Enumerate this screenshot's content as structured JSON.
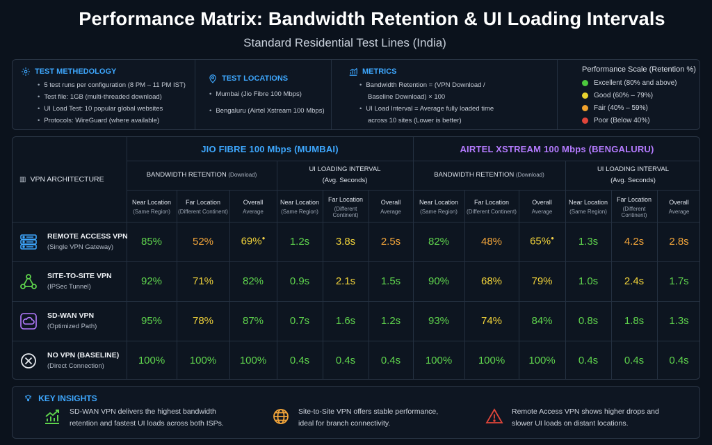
{
  "title": "Performance Matrix: Bandwidth Retention & UI Loading Intervals",
  "subtitle": "Standard Residential Test Lines (India)",
  "info": {
    "methodology": {
      "heading": "TEST METHEDOLOGY",
      "icon": "gear-icon",
      "items": [
        "5 test runs per configuration (8 PM – 11 PM IST)",
        "Test file: 1GB (multi-threaded download)",
        "UI Load Test: 10 popular global websites",
        "Protocols: WireGuard (where available)"
      ]
    },
    "locations": {
      "heading": "TEST LOCATIONS",
      "icon": "map-pin-icon",
      "items": [
        "Mumbai (Jio Fibre 100 Mbps)",
        "Bengaluru (Airtel Xstream 100 Mbps)"
      ]
    },
    "metrics": {
      "heading": "METRICS",
      "icon": "bar-chart-icon",
      "items": [
        "Bandwidth Retention = (VPN Download /",
        "Baseline Download) × 100",
        "UI Load Interval = Average fully loaded time",
        "across 10 sites (Lower is better)"
      ]
    },
    "scale": {
      "title": "Performance Scale (Retention %)",
      "items": [
        {
          "label": "Excellent (80% and above)",
          "color": "#4cc93d"
        },
        {
          "label": "Good (60% – 79%)",
          "color": "#e8d22e"
        },
        {
          "label": "Fair (40% – 59%)",
          "color": "#f0a12c"
        },
        {
          "label": "Poor (Below 40%)",
          "color": "#e0453a"
        }
      ]
    }
  },
  "matrix": {
    "arch_header": "VPN ARCHITECTURE",
    "isps": [
      {
        "name": "JIO FIBRE 100 Mbps (MUMBAI)",
        "color": "#3ea8ff"
      },
      {
        "name": "AIRTEL XSTREAM 100 Mbps (BENGALURU)",
        "color": "#b57bff"
      }
    ],
    "groups": {
      "bw_title": "BANDWIDTH RETENTION",
      "bw_note": "(Download)",
      "ui_title": "UI LOADING INTERVAL",
      "ui_note": "(Avg. Seconds)"
    },
    "subheaders": [
      {
        "l1": "Near Location",
        "l2": "(Same Region)"
      },
      {
        "l1": "Far Location",
        "l2": "(Different Continent)"
      },
      {
        "l1": "Overall",
        "l2": "Average"
      }
    ],
    "rows": [
      {
        "name": "REMOTE ACCESS VPN",
        "sub": "(Single VPN Gateway)",
        "icon": "server-icon",
        "values": [
          "85%",
          "52%",
          "69%",
          "1.2s",
          "3.8s",
          "2.5s",
          "82%",
          "48%",
          "65%",
          "1.3s",
          "4.2s",
          "2.8s"
        ],
        "colors": [
          "green",
          "orange",
          "yellow",
          "green",
          "yellow",
          "orange",
          "green",
          "orange",
          "yellow",
          "green",
          "orange",
          "orange"
        ],
        "stars": [
          2,
          8
        ]
      },
      {
        "name": "SITE-TO-SITE VPN",
        "sub": "(IPSec Tunnel)",
        "icon": "network-nodes-icon",
        "values": [
          "92%",
          "71%",
          "82%",
          "0.9s",
          "2.1s",
          "1.5s",
          "90%",
          "68%",
          "79%",
          "1.0s",
          "2.4s",
          "1.7s"
        ],
        "colors": [
          "green",
          "yellow",
          "green",
          "green",
          "yellow",
          "green",
          "green",
          "yellow",
          "yellow",
          "green",
          "yellow",
          "green"
        ],
        "stars": []
      },
      {
        "name": "SD-WAN VPN",
        "sub": "(Optimized Path)",
        "icon": "cloud-shield-icon",
        "values": [
          "95%",
          "78%",
          "87%",
          "0.7s",
          "1.6s",
          "1.2s",
          "93%",
          "74%",
          "84%",
          "0.8s",
          "1.8s",
          "1.3s"
        ],
        "colors": [
          "green",
          "yellow",
          "green",
          "green",
          "green",
          "green",
          "green",
          "yellow",
          "green",
          "green",
          "green",
          "green"
        ],
        "stars": []
      },
      {
        "name": "NO VPN (BASELINE)",
        "sub": "(Direct Connection)",
        "icon": "no-vpn-icon",
        "values": [
          "100%",
          "100%",
          "100%",
          "0.4s",
          "0.4s",
          "0.4s",
          "100%",
          "100%",
          "100%",
          "0.4s",
          "0.4s",
          "0.4s"
        ],
        "colors": [
          "green",
          "green",
          "green",
          "green",
          "green",
          "green",
          "green",
          "green",
          "green",
          "green",
          "green",
          "green"
        ],
        "stars": []
      }
    ]
  },
  "insights": {
    "heading": "KEY INSIGHTS",
    "items": [
      {
        "icon": "growth-chart-icon",
        "line1": "SD-WAN VPN delivers the highest bandwidth",
        "line2": "retention and fastest UI loads across both ISPs."
      },
      {
        "icon": "globe-icon",
        "line1": "Site-to-Site VPN offers stable performance,",
        "line2": "ideal for branch connectivity."
      },
      {
        "icon": "warning-icon",
        "line1": "Remote Access VPN shows higher drops and",
        "line2": "slower UI loads on distant locations."
      }
    ]
  }
}
